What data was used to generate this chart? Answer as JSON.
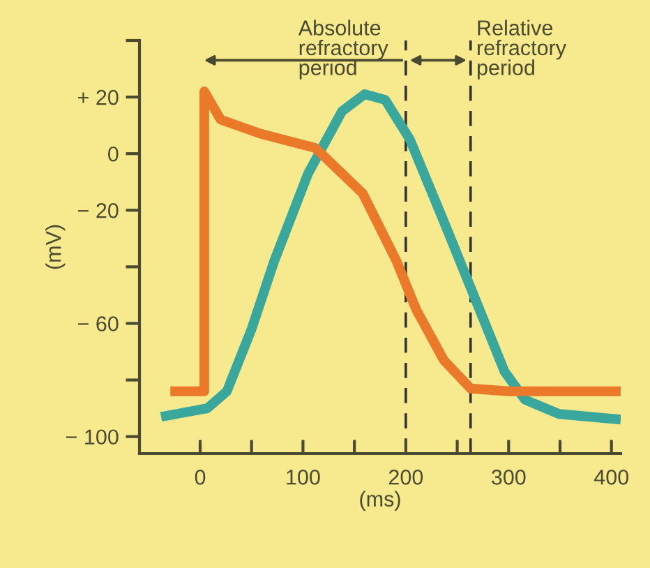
{
  "chart_data": {
    "type": "line",
    "xlabel": "(ms)",
    "ylabel": "(mV)",
    "series": [
      {
        "color": "#39a79c",
        "x": [
          -38,
          7,
          26,
          50,
          72,
          105,
          138,
          160,
          180,
          204,
          237,
          266,
          296,
          316,
          349,
          409
        ],
        "values": [
          -93,
          -90,
          -84,
          -62,
          -38,
          -7,
          15,
          21,
          19,
          5,
          -24,
          -50,
          -77,
          -87,
          -92,
          -94
        ]
      },
      {
        "color": "#ea7a2a",
        "x": [
          -29,
          4,
          4,
          20,
          59,
          112,
          158,
          191,
          210,
          237,
          263,
          300,
          409
        ],
        "values": [
          -84,
          -84,
          22,
          12,
          7,
          2,
          -14,
          -38,
          -55,
          -73,
          -83,
          -84,
          -84
        ]
      }
    ],
    "xlim": [
      -59,
      409
    ],
    "ylim": [
      -106,
      40
    ],
    "xticks": [
      0,
      {
        "value": 50,
        "label": null
      },
      100,
      {
        "value": 150,
        "label": null
      },
      200,
      {
        "value": 250,
        "label": null
      },
      300,
      {
        "value": 350,
        "label": null
      },
      400
    ],
    "yticks": [
      {
        "value": 40,
        "label": null
      },
      {
        "value": 20,
        "label": "+ 20"
      },
      0,
      {
        "value": -20,
        "label": "− 20"
      },
      {
        "value": -40,
        "label": null
      },
      {
        "value": -60,
        "label": "− 60"
      },
      {
        "value": -80,
        "label": null
      },
      {
        "value": -100,
        "label": "− 100"
      }
    ],
    "ref_lines": [
      {
        "axis": "x",
        "value": 200,
        "color": "#333333",
        "line_style": "dashed"
      },
      {
        "axis": "x",
        "value": 263,
        "color": "#333333",
        "line_style": "dashed"
      }
    ],
    "annotations": [
      "Absolute\nrefractory\nperiod",
      "Relative\nrefractory\nperiod"
    ],
    "grid": false,
    "legend": false,
    "marker": "none",
    "line_style": "solid"
  }
}
